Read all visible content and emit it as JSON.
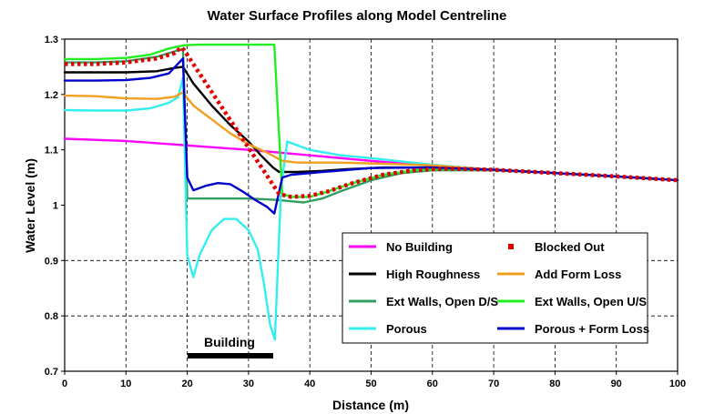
{
  "chart_data": {
    "type": "line",
    "title": "Water Surface Profiles along Model Centreline",
    "xlabel": "Distance (m)",
    "ylabel": "Water Level (m)",
    "xlim": [
      0,
      100
    ],
    "ylim": [
      0.7,
      1.3
    ],
    "x_ticks": [
      "0",
      "10",
      "20",
      "30",
      "40",
      "50",
      "60",
      "70",
      "80",
      "90",
      "100"
    ],
    "y_ticks": [
      "0.7",
      "0.8",
      "0.9",
      "1",
      "1.1",
      "1.2",
      "1.3"
    ],
    "grid": "dashed vertical every 10 m; dashed horizontal at 0.8 and 0.9",
    "legend_position": "lower-right",
    "annotation": {
      "text": "Building",
      "x_start": 20,
      "x_end": 34
    },
    "series": [
      {
        "name": "No Building",
        "color": "#ff00ff",
        "style": "solid",
        "points": [
          [
            0,
            1.12
          ],
          [
            10,
            1.116
          ],
          [
            20,
            1.108
          ],
          [
            30,
            1.1
          ],
          [
            40,
            1.09
          ],
          [
            50,
            1.08
          ],
          [
            60,
            1.071
          ],
          [
            70,
            1.064
          ],
          [
            80,
            1.058
          ],
          [
            90,
            1.052
          ],
          [
            100,
            1.045
          ]
        ]
      },
      {
        "name": "Blocked Out",
        "color": "#e00000",
        "style": "dotted",
        "points": [
          [
            0,
            1.255
          ],
          [
            5,
            1.255
          ],
          [
            10,
            1.258
          ],
          [
            15,
            1.265
          ],
          [
            18,
            1.275
          ],
          [
            19,
            1.285
          ],
          [
            19.5,
            1.28
          ],
          [
            35,
            1.02
          ],
          [
            37,
            1.015
          ],
          [
            40,
            1.017
          ],
          [
            43,
            1.025
          ],
          [
            47,
            1.04
          ],
          [
            52,
            1.055
          ],
          [
            57,
            1.063
          ],
          [
            62,
            1.066
          ],
          [
            70,
            1.064
          ],
          [
            80,
            1.058
          ],
          [
            90,
            1.052
          ],
          [
            100,
            1.045
          ]
        ]
      },
      {
        "name": "High Roughness",
        "color": "#000000",
        "style": "solid",
        "points": [
          [
            0,
            1.24
          ],
          [
            5,
            1.24
          ],
          [
            10,
            1.24
          ],
          [
            15,
            1.242
          ],
          [
            18,
            1.248
          ],
          [
            19.3,
            1.25
          ],
          [
            21,
            1.22
          ],
          [
            24,
            1.18
          ],
          [
            27,
            1.145
          ],
          [
            30,
            1.115
          ],
          [
            32,
            1.09
          ],
          [
            34,
            1.068
          ],
          [
            35,
            1.06
          ],
          [
            38,
            1.06
          ],
          [
            42,
            1.062
          ],
          [
            46,
            1.065
          ],
          [
            52,
            1.068
          ],
          [
            60,
            1.068
          ],
          [
            70,
            1.064
          ],
          [
            80,
            1.058
          ],
          [
            90,
            1.052
          ],
          [
            100,
            1.045
          ]
        ]
      },
      {
        "name": "Add Form Loss",
        "color": "#f0a020",
        "style": "solid",
        "points": [
          [
            0,
            1.198
          ],
          [
            5,
            1.197
          ],
          [
            10,
            1.193
          ],
          [
            15,
            1.192
          ],
          [
            18,
            1.196
          ],
          [
            19.3,
            1.204
          ],
          [
            21,
            1.18
          ],
          [
            24,
            1.155
          ],
          [
            27,
            1.13
          ],
          [
            30,
            1.11
          ],
          [
            33,
            1.095
          ],
          [
            35.5,
            1.08
          ],
          [
            38,
            1.077
          ],
          [
            45,
            1.077
          ],
          [
            52,
            1.075
          ],
          [
            60,
            1.072
          ],
          [
            70,
            1.064
          ],
          [
            80,
            1.058
          ],
          [
            90,
            1.052
          ],
          [
            100,
            1.045
          ]
        ]
      },
      {
        "name": "Ext Walls, Open D/S",
        "color": "#30a060",
        "style": "solid",
        "points": [
          [
            0,
            1.258
          ],
          [
            5,
            1.258
          ],
          [
            10,
            1.26
          ],
          [
            15,
            1.268
          ],
          [
            18,
            1.278
          ],
          [
            19.3,
            1.282
          ],
          [
            20,
            1.012
          ],
          [
            25,
            1.012
          ],
          [
            30,
            1.012
          ],
          [
            34,
            1.01
          ],
          [
            36,
            1.008
          ],
          [
            39,
            1.005
          ],
          [
            42,
            1.012
          ],
          [
            45,
            1.025
          ],
          [
            50,
            1.045
          ],
          [
            55,
            1.058
          ],
          [
            60,
            1.063
          ],
          [
            70,
            1.063
          ],
          [
            80,
            1.058
          ],
          [
            90,
            1.052
          ],
          [
            100,
            1.045
          ]
        ]
      },
      {
        "name": "Ext Walls, Open U/S",
        "color": "#22ee22",
        "style": "solid",
        "points": [
          [
            0,
            1.264
          ],
          [
            5,
            1.264
          ],
          [
            10,
            1.266
          ],
          [
            14,
            1.272
          ],
          [
            17,
            1.283
          ],
          [
            19.5,
            1.289
          ],
          [
            22,
            1.29
          ],
          [
            30,
            1.29
          ],
          [
            34.2,
            1.29
          ],
          [
            35.5,
            1.02
          ],
          [
            37,
            1.015
          ],
          [
            40,
            1.015
          ],
          [
            43,
            1.025
          ],
          [
            47,
            1.04
          ],
          [
            52,
            1.055
          ],
          [
            57,
            1.063
          ],
          [
            62,
            1.066
          ],
          [
            70,
            1.064
          ],
          [
            80,
            1.058
          ],
          [
            90,
            1.052
          ],
          [
            100,
            1.045
          ]
        ]
      },
      {
        "name": "Porous",
        "color": "#33eeee",
        "style": "solid",
        "points": [
          [
            0,
            1.172
          ],
          [
            5,
            1.171
          ],
          [
            10,
            1.171
          ],
          [
            14,
            1.175
          ],
          [
            17,
            1.185
          ],
          [
            18.5,
            1.195
          ],
          [
            19.3,
            1.23
          ],
          [
            20,
            0.91
          ],
          [
            21,
            0.87
          ],
          [
            22,
            0.91
          ],
          [
            24,
            0.955
          ],
          [
            26,
            0.975
          ],
          [
            28,
            0.975
          ],
          [
            30,
            0.955
          ],
          [
            31.5,
            0.92
          ],
          [
            32.5,
            0.86
          ],
          [
            33.5,
            0.785
          ],
          [
            34.3,
            0.757
          ],
          [
            35.3,
            1.03
          ],
          [
            36.3,
            1.115
          ],
          [
            40,
            1.1
          ],
          [
            45,
            1.09
          ],
          [
            50,
            1.085
          ],
          [
            60,
            1.073
          ],
          [
            70,
            1.064
          ],
          [
            80,
            1.058
          ],
          [
            90,
            1.052
          ],
          [
            100,
            1.045
          ]
        ]
      },
      {
        "name": "Porous + Form Loss",
        "color": "#0000cc",
        "style": "solid",
        "points": [
          [
            0,
            1.225
          ],
          [
            5,
            1.225
          ],
          [
            10,
            1.226
          ],
          [
            14,
            1.23
          ],
          [
            17,
            1.238
          ],
          [
            19.3,
            1.265
          ],
          [
            20,
            1.05
          ],
          [
            21,
            1.027
          ],
          [
            23,
            1.035
          ],
          [
            25,
            1.04
          ],
          [
            27,
            1.038
          ],
          [
            29,
            1.025
          ],
          [
            31,
            1.01
          ],
          [
            33,
            0.997
          ],
          [
            34.2,
            0.985
          ],
          [
            35.5,
            1.05
          ],
          [
            37,
            1.055
          ],
          [
            42,
            1.06
          ],
          [
            50,
            1.067
          ],
          [
            60,
            1.068
          ],
          [
            70,
            1.064
          ],
          [
            80,
            1.058
          ],
          [
            90,
            1.052
          ],
          [
            100,
            1.045
          ]
        ]
      }
    ]
  }
}
